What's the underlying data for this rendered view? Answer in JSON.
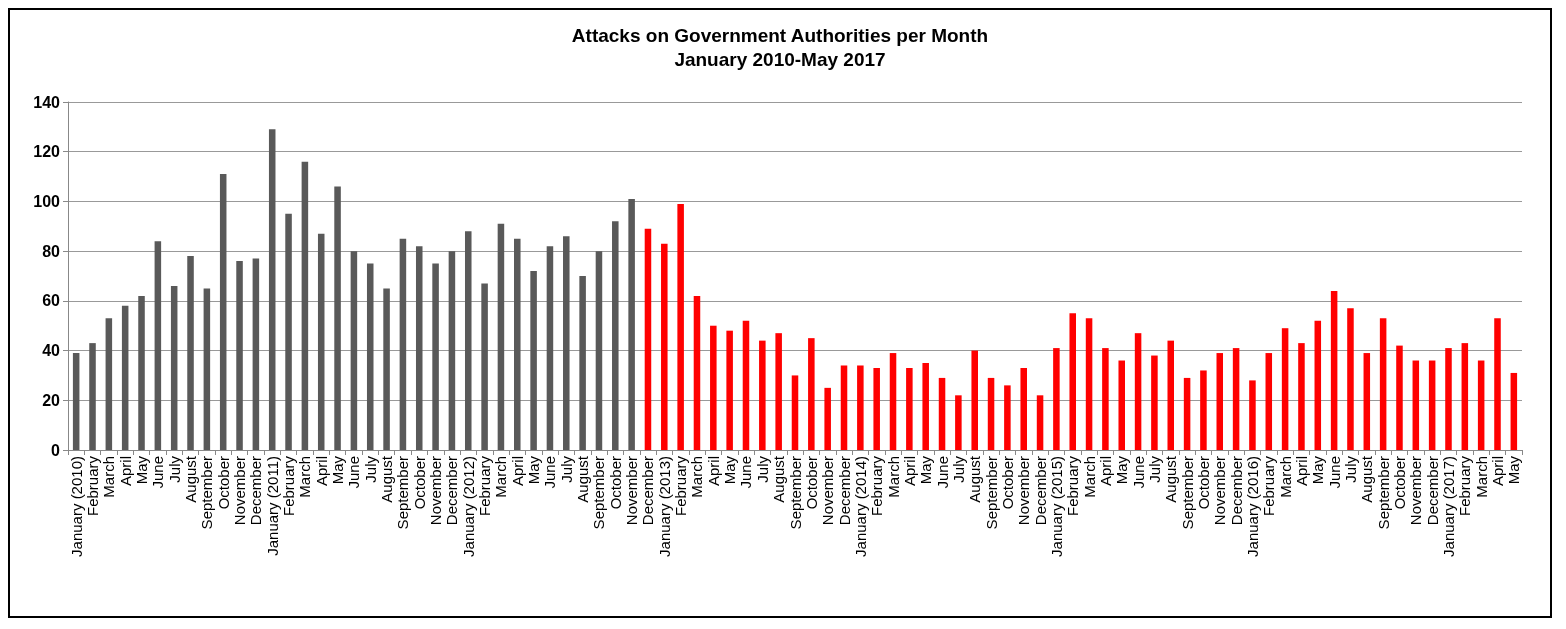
{
  "chart_data": {
    "type": "bar",
    "title": "Attacks on Government Authorities per Month\nJanuary 2010-May 2017",
    "categories": [
      "January (2010)",
      "February",
      "March",
      "April",
      "May",
      "June",
      "July",
      "August",
      "September",
      "October",
      "November",
      "December",
      "January (2011)",
      "February",
      "March",
      "April",
      "May",
      "June",
      "July",
      "August",
      "September",
      "October",
      "November",
      "December",
      "January (2012)",
      "February",
      "March",
      "April",
      "May",
      "June",
      "July",
      "August",
      "September",
      "October",
      "November",
      "December",
      "January (2013)",
      "February",
      "March",
      "April",
      "May",
      "June",
      "July",
      "August",
      "September",
      "October",
      "November",
      "December",
      "January (2014)",
      "February",
      "March",
      "April",
      "May",
      "June",
      "July",
      "August",
      "September",
      "October",
      "November",
      "December",
      "January (2015)",
      "February",
      "March",
      "April",
      "May",
      "June",
      "July",
      "August",
      "September",
      "October",
      "November",
      "December",
      "January (2016)",
      "February",
      "March",
      "April",
      "May",
      "June",
      "July",
      "August",
      "September",
      "October",
      "November",
      "December",
      "January (2017)",
      "February",
      "March",
      "April",
      "May"
    ],
    "values": [
      39,
      43,
      53,
      58,
      62,
      84,
      66,
      78,
      65,
      111,
      76,
      77,
      129,
      95,
      116,
      87,
      106,
      80,
      75,
      65,
      85,
      82,
      75,
      80,
      88,
      67,
      91,
      85,
      72,
      82,
      86,
      70,
      80,
      92,
      101,
      89,
      83,
      99,
      62,
      50,
      48,
      52,
      44,
      47,
      30,
      45,
      25,
      34,
      34,
      33,
      39,
      33,
      35,
      29,
      22,
      40,
      29,
      26,
      33,
      22,
      41,
      55,
      53,
      41,
      36,
      47,
      38,
      44,
      29,
      32,
      39,
      41,
      28,
      39,
      49,
      43,
      52,
      64,
      57,
      39,
      53,
      42,
      36,
      36,
      41,
      43,
      36,
      53,
      31
    ],
    "colors": [
      "#595959",
      "#595959",
      "#595959",
      "#595959",
      "#595959",
      "#595959",
      "#595959",
      "#595959",
      "#595959",
      "#595959",
      "#595959",
      "#595959",
      "#595959",
      "#595959",
      "#595959",
      "#595959",
      "#595959",
      "#595959",
      "#595959",
      "#595959",
      "#595959",
      "#595959",
      "#595959",
      "#595959",
      "#595959",
      "#595959",
      "#595959",
      "#595959",
      "#595959",
      "#595959",
      "#595959",
      "#595959",
      "#595959",
      "#595959",
      "#595959",
      "#ff0000",
      "#ff0000",
      "#ff0000",
      "#ff0000",
      "#ff0000",
      "#ff0000",
      "#ff0000",
      "#ff0000",
      "#ff0000",
      "#ff0000",
      "#ff0000",
      "#ff0000",
      "#ff0000",
      "#ff0000",
      "#ff0000",
      "#ff0000",
      "#ff0000",
      "#ff0000",
      "#ff0000",
      "#ff0000",
      "#ff0000",
      "#ff0000",
      "#ff0000",
      "#ff0000",
      "#ff0000",
      "#ff0000",
      "#ff0000",
      "#ff0000",
      "#ff0000",
      "#ff0000",
      "#ff0000",
      "#ff0000",
      "#ff0000",
      "#ff0000",
      "#ff0000",
      "#ff0000",
      "#ff0000",
      "#ff0000",
      "#ff0000",
      "#ff0000",
      "#ff0000",
      "#ff0000",
      "#ff0000",
      "#ff0000",
      "#ff0000",
      "#ff0000",
      "#ff0000",
      "#ff0000",
      "#ff0000",
      "#ff0000",
      "#ff0000",
      "#ff0000",
      "#ff0000",
      "#ff0000"
    ],
    "ylim": [
      0,
      140
    ],
    "yticks": [
      0,
      20,
      40,
      60,
      80,
      100,
      120,
      140
    ],
    "grid": "y"
  }
}
